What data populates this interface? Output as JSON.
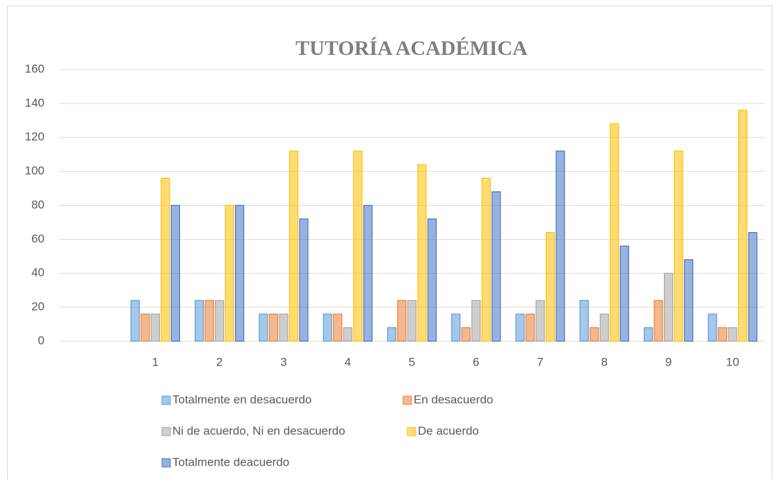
{
  "chart_data": {
    "type": "bar",
    "title": "TUTORÍA ACADÉMICA",
    "categories": [
      null,
      "1",
      "2",
      "3",
      "4",
      "5",
      "6",
      "7",
      "8",
      "9",
      "10"
    ],
    "series": [
      {
        "name": "Totalmente en desacuerdo",
        "color": "#5b9bd5",
        "values": [
          null,
          24,
          24,
          16,
          16,
          8,
          16,
          16,
          24,
          8,
          16
        ]
      },
      {
        "name": "En desacuerdo",
        "color": "#ed7d31",
        "values": [
          null,
          16,
          24,
          16,
          16,
          24,
          8,
          16,
          8,
          24,
          8
        ]
      },
      {
        "name": "Ni de acuerdo, Ni en desacuerdo",
        "color": "#a5a5a5",
        "values": [
          null,
          16,
          24,
          16,
          8,
          24,
          24,
          24,
          16,
          40,
          8
        ]
      },
      {
        "name": "De acuerdo",
        "color": "#ffc000",
        "values": [
          null,
          96,
          80,
          112,
          112,
          104,
          96,
          64,
          128,
          112,
          136
        ]
      },
      {
        "name": "Totalmente deacuerdo",
        "color": "#4472c4",
        "values": [
          null,
          80,
          80,
          72,
          80,
          72,
          88,
          112,
          56,
          48,
          64
        ]
      }
    ],
    "ylim": [
      0,
      160
    ],
    "yticks": [
      0,
      20,
      40,
      60,
      80,
      100,
      120,
      140,
      160
    ],
    "grid": true,
    "legend": "bottom"
  }
}
